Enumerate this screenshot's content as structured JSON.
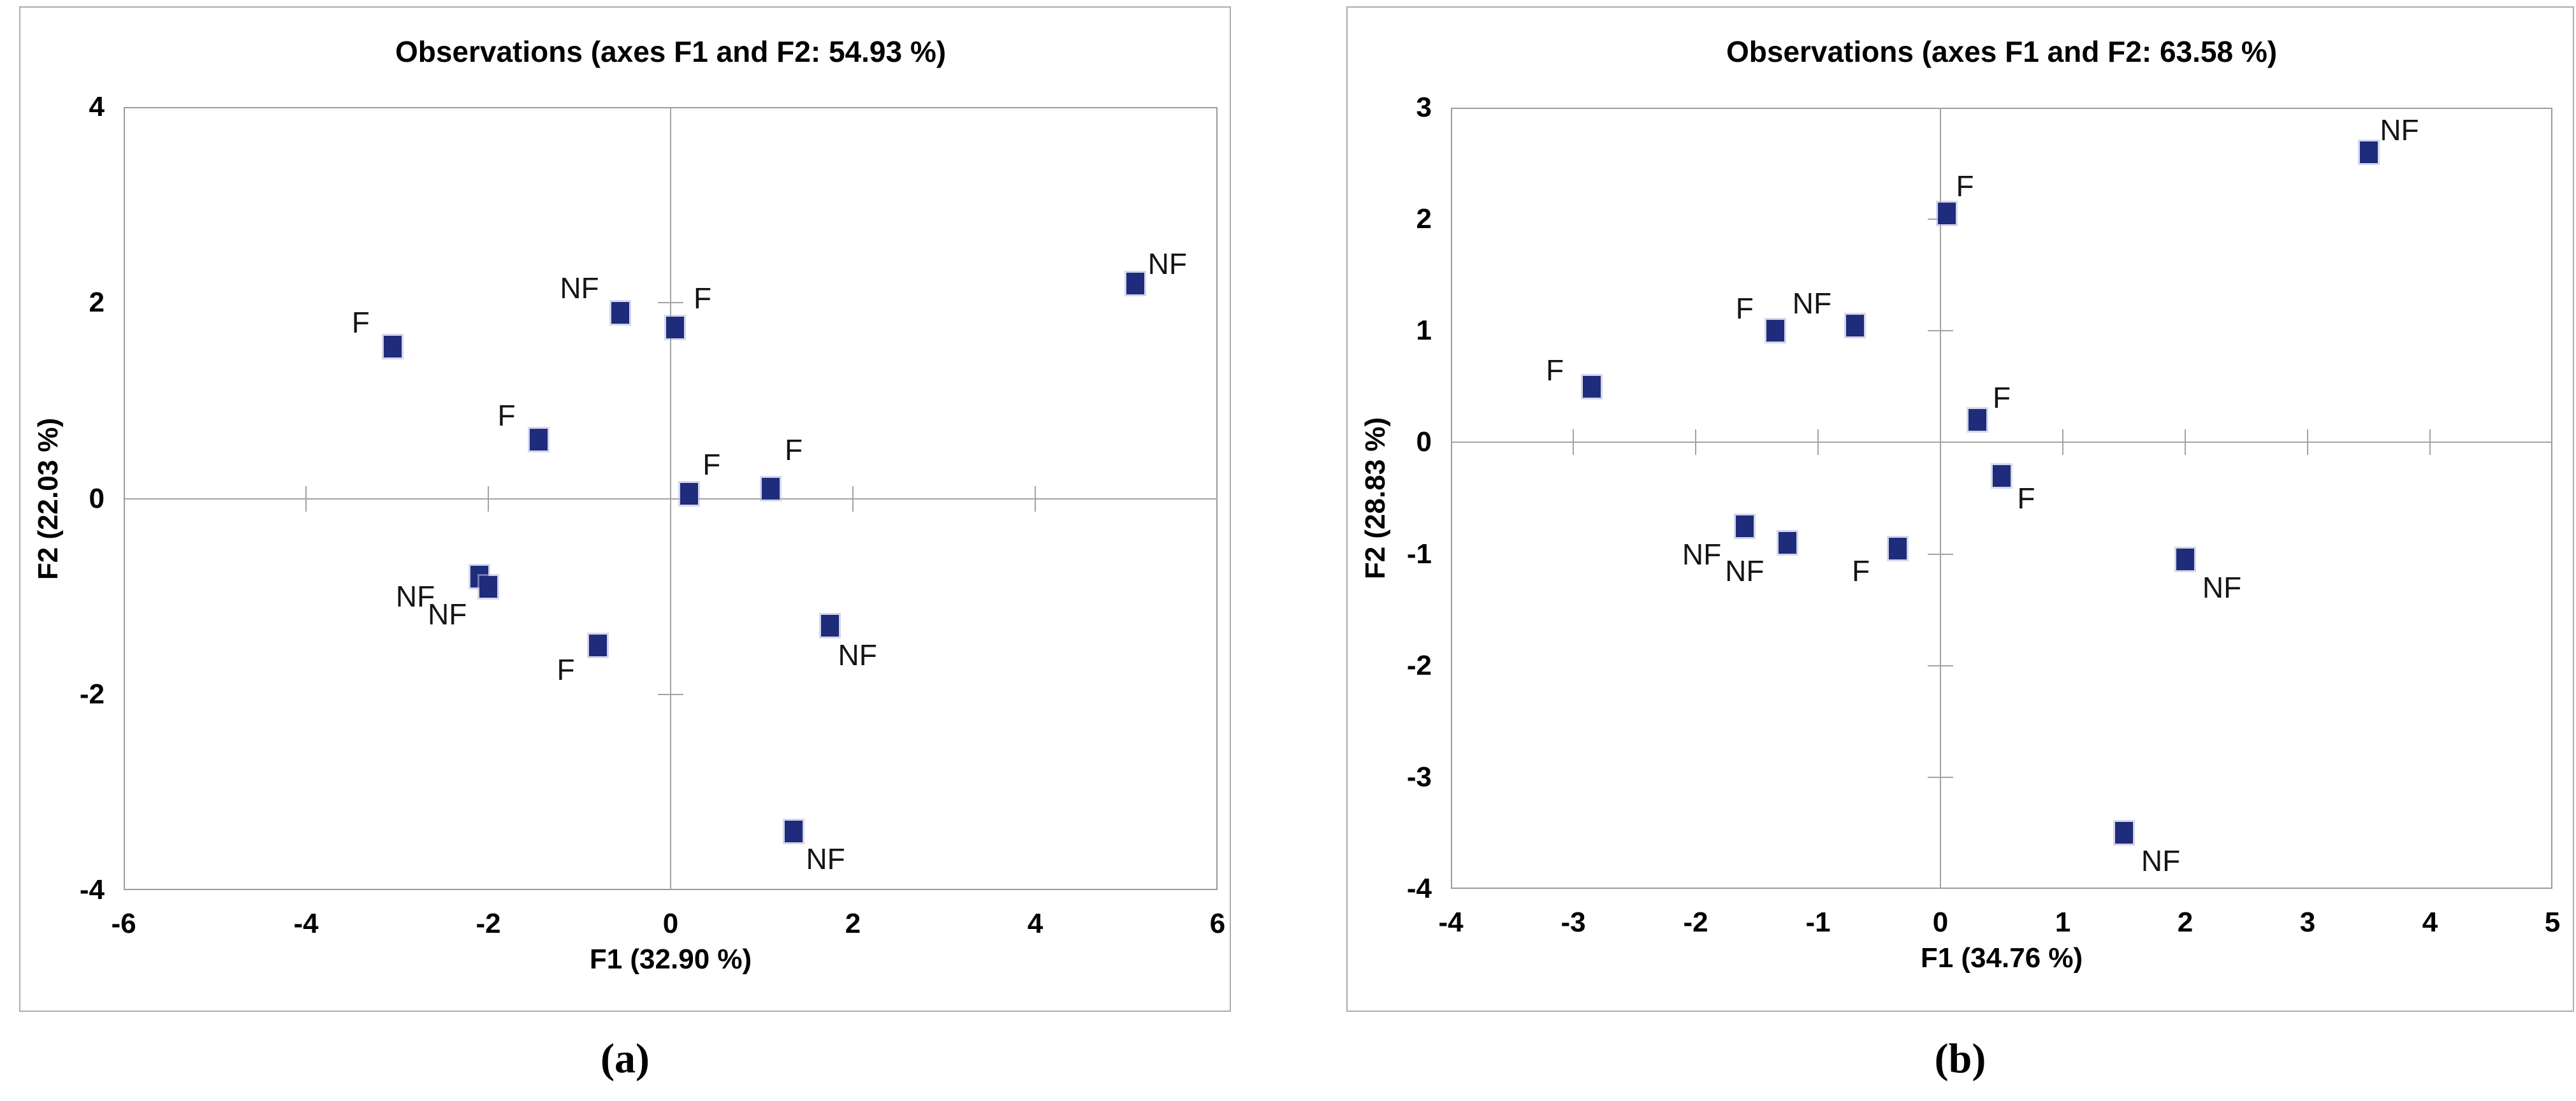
{
  "page": {
    "background": "#ffffff",
    "panel_border_color": "#ACACAC",
    "axis_color": "#A3A3A3",
    "frame_color": "#9B9B9B",
    "text_color": "#000000",
    "marker_color": "#1F2B7B"
  },
  "chart_data": [
    {
      "type": "scatter",
      "panel_caption": "(a)",
      "title": "Observations (axes F1 and F2: 54.93 %)",
      "xlabel": "F1 (32.90 %)",
      "ylabel": "F2 (22.03 %)",
      "xlim": [
        -6,
        6
      ],
      "ylim": [
        -4,
        4
      ],
      "xticks": [
        -6,
        -4,
        -2,
        0,
        2,
        4,
        6
      ],
      "yticks": [
        4,
        2,
        0,
        -2,
        -4
      ],
      "grid": false,
      "legend": "none",
      "marker": {
        "shape": "square",
        "color": "#1F2B7B"
      },
      "points": [
        {
          "label": "F",
          "x": -3.05,
          "y": 1.55,
          "label_x": -3.4,
          "label_y": 1.8
        },
        {
          "label": "NF",
          "x": -0.55,
          "y": 1.9,
          "label_x": -1.0,
          "label_y": 2.15
        },
        {
          "label": "F",
          "x": 0.05,
          "y": 1.75,
          "label_x": 0.35,
          "label_y": 2.05
        },
        {
          "label": "F",
          "x": -1.45,
          "y": 0.6,
          "label_x": -1.8,
          "label_y": 0.85
        },
        {
          "label": "F",
          "x": 0.2,
          "y": 0.05,
          "label_x": 0.45,
          "label_y": 0.35
        },
        {
          "label": "F",
          "x": 1.1,
          "y": 0.1,
          "label_x": 1.35,
          "label_y": 0.5
        },
        {
          "label": "NF",
          "x": 5.1,
          "y": 2.2,
          "label_x": 5.45,
          "label_y": 2.4
        },
        {
          "label": "NF",
          "x": -2.1,
          "y": -0.8,
          "label_x": -2.8,
          "label_y": -1.0
        },
        {
          "label": "NF",
          "x": -2.0,
          "y": -0.9,
          "label_x": -2.45,
          "label_y": -1.18
        },
        {
          "label": "F",
          "x": -0.8,
          "y": -1.5,
          "label_x": -1.15,
          "label_y": -1.75
        },
        {
          "label": "NF",
          "x": 1.75,
          "y": -1.3,
          "label_x": 2.05,
          "label_y": -1.6
        },
        {
          "label": "NF",
          "x": 1.35,
          "y": -3.4,
          "label_x": 1.7,
          "label_y": -3.68
        }
      ]
    },
    {
      "type": "scatter",
      "panel_caption": "(b)",
      "title": "Observations (axes F1 and F2: 63.58 %)",
      "xlabel": "F1 (34.76 %)",
      "ylabel": "F2 (28.83 %)",
      "xlim": [
        -4,
        5
      ],
      "ylim": [
        -4,
        3
      ],
      "xticks": [
        -4,
        -3,
        -2,
        -1,
        0,
        1,
        2,
        3,
        4,
        5
      ],
      "yticks": [
        3,
        2,
        1,
        0,
        -1,
        -2,
        -3,
        -4
      ],
      "grid": false,
      "legend": "none",
      "marker": {
        "shape": "square",
        "color": "#1F2B7B"
      },
      "points": [
        {
          "label": "F",
          "x": -2.85,
          "y": 0.5,
          "label_x": -3.15,
          "label_y": 0.65
        },
        {
          "label": "F",
          "x": -1.35,
          "y": 1.0,
          "label_x": -1.6,
          "label_y": 1.2
        },
        {
          "label": "NF",
          "x": -0.7,
          "y": 1.05,
          "label_x": -1.05,
          "label_y": 1.25
        },
        {
          "label": "F",
          "x": 0.05,
          "y": 2.05,
          "label_x": 0.2,
          "label_y": 2.3
        },
        {
          "label": "NF",
          "x": 3.5,
          "y": 2.6,
          "label_x": 3.75,
          "label_y": 2.8
        },
        {
          "label": "F",
          "x": 0.3,
          "y": 0.2,
          "label_x": 0.5,
          "label_y": 0.4
        },
        {
          "label": "F",
          "x": 0.5,
          "y": -0.3,
          "label_x": 0.7,
          "label_y": -0.5
        },
        {
          "label": "NF",
          "x": -1.6,
          "y": -0.75,
          "label_x": -1.95,
          "label_y": -1.0
        },
        {
          "label": "NF",
          "x": -1.25,
          "y": -0.9,
          "label_x": -1.6,
          "label_y": -1.15
        },
        {
          "label": "F",
          "x": -0.35,
          "y": -0.95,
          "label_x": -0.65,
          "label_y": -1.15
        },
        {
          "label": "NF",
          "x": 2.0,
          "y": -1.05,
          "label_x": 2.3,
          "label_y": -1.3
        },
        {
          "label": "NF",
          "x": 1.5,
          "y": -3.5,
          "label_x": 1.8,
          "label_y": -3.75
        }
      ]
    }
  ]
}
